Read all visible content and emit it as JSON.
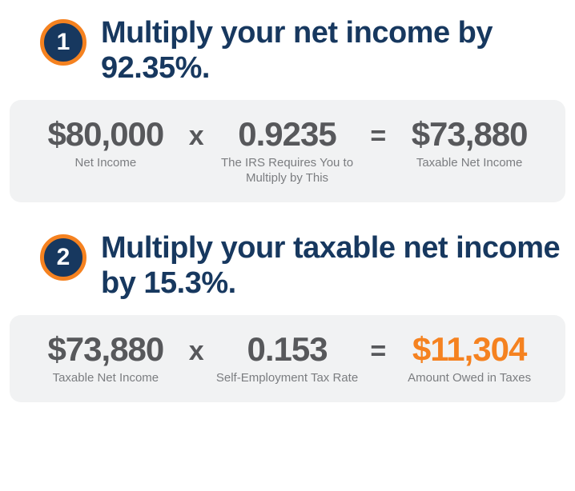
{
  "colors": {
    "navy": "#17385f",
    "orange": "#f58220",
    "card_bg": "#f1f2f3",
    "value_gray": "#57585b",
    "label_gray": "#7b7d80",
    "white": "#ffffff"
  },
  "steps": [
    {
      "number": "1",
      "title": "Multiply your net income by 92.35%.",
      "calc": {
        "a_value": "$80,000",
        "a_label": "Net Income",
        "op1": "x",
        "b_value": "0.9235",
        "b_label": "The IRS Requires You to Multiply by This",
        "op2": "=",
        "c_value": "$73,880",
        "c_label": "Taxable Net Income",
        "c_highlight": false
      }
    },
    {
      "number": "2",
      "title": "Multiply your taxable net income by 15.3%.",
      "calc": {
        "a_value": "$73,880",
        "a_label": "Taxable Net Income",
        "op1": "x",
        "b_value": "0.153",
        "b_label": "Self-Employment Tax Rate",
        "op2": "=",
        "c_value": "$11,304",
        "c_label": "Amount Owed in Taxes",
        "c_highlight": true
      }
    }
  ]
}
